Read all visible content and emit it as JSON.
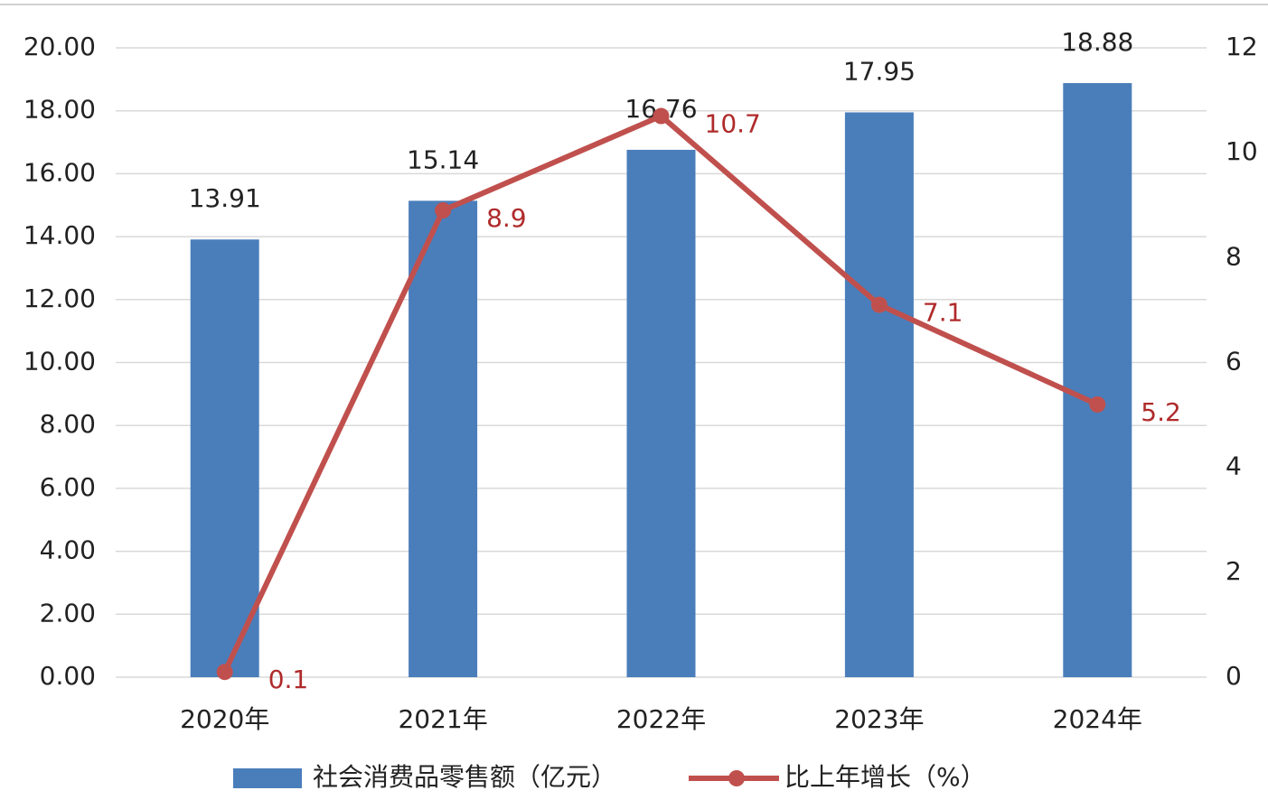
{
  "chart_data": {
    "type": "bar",
    "categories": [
      "2020年",
      "2021年",
      "2022年",
      "2023年",
      "2024年"
    ],
    "series": [
      {
        "name": "社会消费品零售额（亿元）",
        "color": "#4a7ebb",
        "type": "bar",
        "values": [
          13.91,
          15.14,
          16.76,
          17.95,
          18.88
        ]
      },
      {
        "name": "比上年增长（%）",
        "color": "#c0504d",
        "type": "line",
        "axis": "y2",
        "values": [
          0.1,
          8.9,
          10.7,
          7.1,
          5.2
        ]
      }
    ],
    "ylim": [
      0,
      20
    ],
    "yticks": [
      {
        "value": 0,
        "label": "0.00"
      },
      {
        "value": 2,
        "label": "2.00"
      },
      {
        "value": 4,
        "label": "4.00"
      },
      {
        "value": 6,
        "label": "6.00"
      },
      {
        "value": 8,
        "label": "8.00"
      },
      {
        "value": 10,
        "label": "10.00"
      },
      {
        "value": 12,
        "label": "12.00"
      },
      {
        "value": 14,
        "label": "14.00"
      },
      {
        "value": 16,
        "label": "16.00"
      },
      {
        "value": 18,
        "label": "18.00"
      },
      {
        "value": 20,
        "label": "20.00"
      }
    ],
    "y2lim": [
      0,
      12
    ],
    "y2ticks": [
      0,
      2,
      4,
      6,
      8,
      10,
      12
    ],
    "grid": true,
    "legend": "bottom"
  }
}
